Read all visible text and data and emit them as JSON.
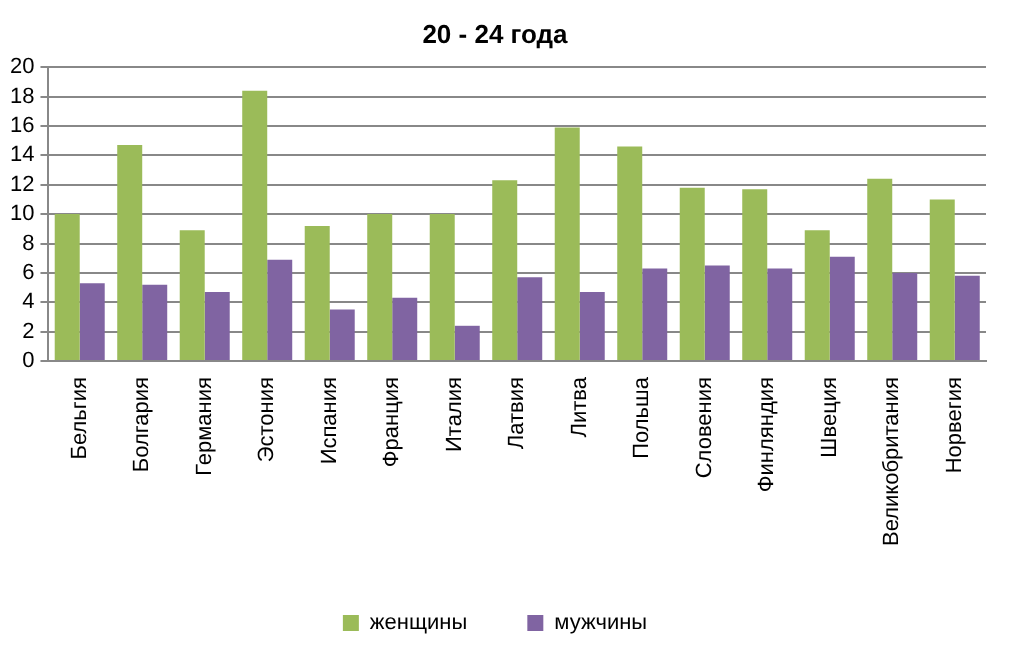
{
  "chart_data": {
    "type": "bar",
    "title": "20 - 24 года",
    "categories": [
      "Бельгия",
      "Болгария",
      "Германия",
      "Эстония",
      "Испания",
      "Франция",
      "Италия",
      "Латвия",
      "Литва",
      "Польша",
      "Словения",
      "Финляндия",
      "Швеция",
      "Великобритания",
      "Норвегия"
    ],
    "series": [
      {
        "name": "женщины",
        "color": "#9bbb59",
        "values": [
          10.0,
          14.7,
          8.9,
          18.4,
          9.2,
          10.0,
          10.0,
          12.3,
          15.9,
          14.6,
          11.8,
          11.7,
          8.9,
          12.4,
          11.0
        ]
      },
      {
        "name": "мужчины",
        "color": "#8064a2",
        "values": [
          5.3,
          5.2,
          4.7,
          6.9,
          3.5,
          4.3,
          2.4,
          5.7,
          4.7,
          6.3,
          6.5,
          6.3,
          7.1,
          6.0,
          5.8
        ]
      }
    ],
    "ylim": [
      0,
      20
    ],
    "yticks": [
      0,
      2,
      4,
      6,
      8,
      10,
      12,
      14,
      16,
      18,
      20
    ],
    "grid": "y",
    "legend": "bottom"
  }
}
